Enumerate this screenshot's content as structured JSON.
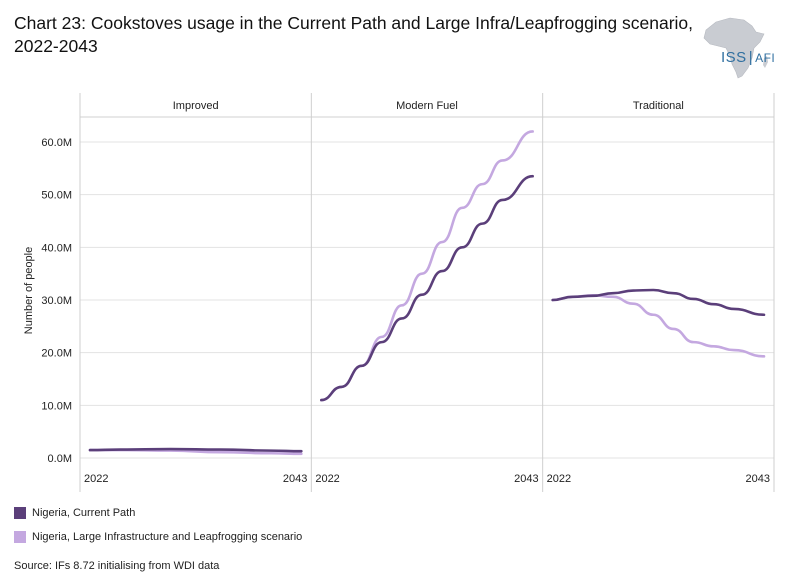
{
  "title": "Chart 23: Cookstoves usage in the Current Path and Large Infra/Leapfrogging scenario, 2022-2043",
  "logo": {
    "text_main": "ISS",
    "text_sub": "AFI",
    "color": "#2f6fa0"
  },
  "source": "Source: IFs 8.72 initialising from WDI data",
  "chart_data": {
    "type": "line",
    "ylabel": "Number of people",
    "ylim": [
      0,
      65
    ],
    "yticks": [
      0,
      10,
      20,
      30,
      40,
      50,
      60
    ],
    "ytick_labels": [
      "0.0M",
      "10.0M",
      "20.0M",
      "30.0M",
      "40.0M",
      "50.0M",
      "60.0M"
    ],
    "xlim": [
      2022,
      2043
    ],
    "xtick_labels": [
      "2022",
      "2043"
    ],
    "grid": true,
    "legend_position": "bottom-left",
    "panels": [
      {
        "name": "Improved",
        "series": [
          {
            "name": "Nigeria, Current Path",
            "color": "#5b3f7a",
            "x": [
              2022,
              2025,
              2030,
              2035,
              2040,
              2043
            ],
            "y": [
              1.5,
              1.6,
              1.7,
              1.6,
              1.4,
              1.3
            ]
          },
          {
            "name": "Nigeria, Large Infrastructure and Leapfrogging scenario",
            "color": "#c4a8e0",
            "x": [
              2022,
              2025,
              2030,
              2035,
              2040,
              2043
            ],
            "y": [
              1.5,
              1.5,
              1.4,
              1.1,
              0.9,
              0.8
            ]
          }
        ]
      },
      {
        "name": "Modern Fuel",
        "series": [
          {
            "name": "Nigeria, Current Path",
            "color": "#5b3f7a",
            "x": [
              2022,
              2024,
              2026,
              2028,
              2030,
              2032,
              2034,
              2036,
              2038,
              2040,
              2043
            ],
            "y": [
              11,
              13.5,
              17.5,
              22,
              26.5,
              31,
              35.5,
              40,
              44.5,
              49,
              53.5
            ]
          },
          {
            "name": "Nigeria, Large Infrastructure and Leapfrogging scenario",
            "color": "#c4a8e0",
            "x": [
              2022,
              2024,
              2026,
              2028,
              2030,
              2032,
              2034,
              2036,
              2038,
              2040,
              2043
            ],
            "y": [
              11,
              13.5,
              17.5,
              23,
              29,
              35,
              41,
              47.5,
              52,
              56.5,
              62
            ]
          }
        ]
      },
      {
        "name": "Traditional",
        "series": [
          {
            "name": "Nigeria, Current Path",
            "color": "#5b3f7a",
            "x": [
              2022,
              2024,
              2026,
              2028,
              2030,
              2032,
              2034,
              2036,
              2038,
              2040,
              2043
            ],
            "y": [
              30,
              30.6,
              30.8,
              31.3,
              31.8,
              31.9,
              31.3,
              30.2,
              29.2,
              28.3,
              27.2
            ]
          },
          {
            "name": "Nigeria, Large Infrastructure and Leapfrogging scenario",
            "color": "#c4a8e0",
            "x": [
              2022,
              2024,
              2026,
              2028,
              2030,
              2032,
              2034,
              2036,
              2038,
              2040,
              2043
            ],
            "y": [
              30,
              30.6,
              30.9,
              30.6,
              29.3,
              27.2,
              24.5,
              22,
              21.2,
              20.5,
              19.3
            ]
          }
        ]
      }
    ]
  }
}
